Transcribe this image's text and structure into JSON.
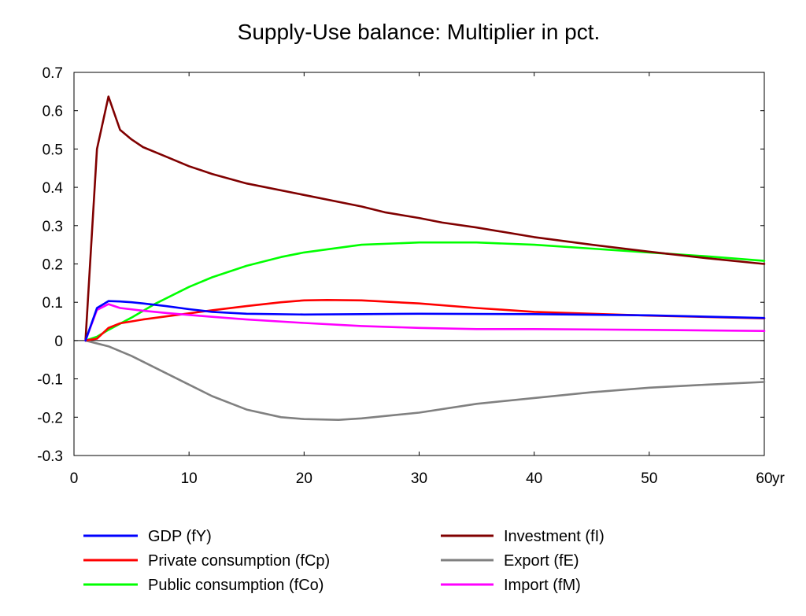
{
  "chart_data": {
    "type": "line",
    "title": "Supply-Use balance: Multiplier in pct.",
    "xlabel": "",
    "ylabel": "",
    "x_unit_label": "yr",
    "xlim": [
      0,
      60
    ],
    "ylim": [
      -0.3,
      0.7
    ],
    "x_ticks": [
      0,
      10,
      20,
      30,
      40,
      50,
      60
    ],
    "x_tick_labels": [
      "0",
      "10",
      "20",
      "30",
      "40",
      "50",
      "60"
    ],
    "y_ticks": [
      -0.3,
      -0.2,
      -0.1,
      0,
      0.1,
      0.2,
      0.3,
      0.4,
      0.5,
      0.6,
      0.7
    ],
    "y_tick_labels": [
      "-0.3",
      "-0.2",
      "-0.1",
      "0",
      "0.1",
      "0.2",
      "0.3",
      "0.4",
      "0.5",
      "0.6",
      "0.7"
    ],
    "zero_line": true,
    "grid": false,
    "legend_position": "bottom",
    "series": [
      {
        "name": "GDP (fY)",
        "color": "#0000ff",
        "x": [
          1,
          2,
          3,
          4,
          5,
          6,
          8,
          10,
          12,
          15,
          20,
          25,
          30,
          40,
          50,
          60
        ],
        "values": [
          0,
          0.085,
          0.103,
          0.102,
          0.1,
          0.097,
          0.09,
          0.082,
          0.075,
          0.07,
          0.068,
          0.069,
          0.07,
          0.069,
          0.066,
          0.059
        ]
      },
      {
        "name": "Private consumption (fCp)",
        "color": "#ff0000",
        "x": [
          1,
          2,
          3,
          4,
          6,
          8,
          10,
          12,
          15,
          18,
          20,
          22,
          25,
          30,
          35,
          40,
          50,
          60
        ],
        "values": [
          0,
          0.005,
          0.033,
          0.045,
          0.055,
          0.063,
          0.071,
          0.079,
          0.09,
          0.1,
          0.105,
          0.106,
          0.105,
          0.097,
          0.085,
          0.075,
          0.065,
          0.058
        ]
      },
      {
        "name": "Public consumption (fCo)",
        "color": "#00ff00",
        "x": [
          1,
          2,
          3,
          5,
          7,
          10,
          12,
          15,
          18,
          20,
          25,
          30,
          35,
          40,
          45,
          50,
          55,
          60
        ],
        "values": [
          0,
          0.01,
          0.028,
          0.06,
          0.095,
          0.14,
          0.165,
          0.195,
          0.218,
          0.23,
          0.25,
          0.256,
          0.256,
          0.25,
          0.24,
          0.23,
          0.22,
          0.208
        ]
      },
      {
        "name": "Investment (fI)",
        "color": "#800000",
        "x": [
          1,
          2,
          3,
          4,
          5,
          6,
          8,
          10,
          12,
          15,
          20,
          25,
          27,
          30,
          32,
          35,
          40,
          45,
          50,
          55,
          60
        ],
        "values": [
          0,
          0.5,
          0.637,
          0.55,
          0.525,
          0.505,
          0.48,
          0.455,
          0.435,
          0.41,
          0.38,
          0.35,
          0.335,
          0.32,
          0.308,
          0.295,
          0.27,
          0.25,
          0.232,
          0.215,
          0.2
        ]
      },
      {
        "name": "Export (fE)",
        "color": "#808080",
        "x": [
          1,
          3,
          5,
          8,
          10,
          12,
          15,
          18,
          20,
          23,
          25,
          30,
          35,
          40,
          45,
          50,
          55,
          60
        ],
        "values": [
          0,
          -0.015,
          -0.04,
          -0.085,
          -0.115,
          -0.145,
          -0.18,
          -0.2,
          -0.205,
          -0.207,
          -0.203,
          -0.188,
          -0.165,
          -0.15,
          -0.135,
          -0.123,
          -0.115,
          -0.108
        ]
      },
      {
        "name": "Import (fM)",
        "color": "#ff00ff",
        "x": [
          1,
          2,
          3,
          4,
          6,
          8,
          10,
          12,
          15,
          20,
          25,
          30,
          35,
          40,
          50,
          60
        ],
        "values": [
          0,
          0.08,
          0.095,
          0.085,
          0.078,
          0.072,
          0.067,
          0.062,
          0.055,
          0.046,
          0.038,
          0.033,
          0.03,
          0.03,
          0.028,
          0.025
        ]
      }
    ]
  }
}
